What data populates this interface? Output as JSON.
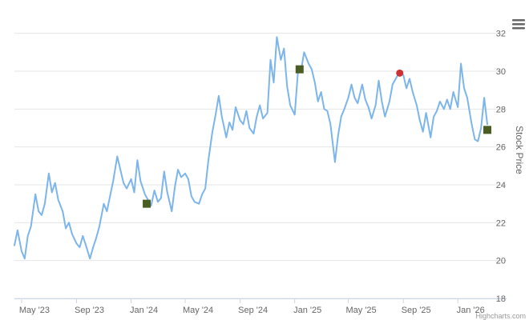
{
  "chart_data": {
    "type": "line",
    "title": "",
    "xlabel": "",
    "ylabel": "Stock Price",
    "ylim": [
      18,
      33
    ],
    "yticks": [
      18,
      20,
      22,
      24,
      26,
      28,
      30,
      32
    ],
    "xlim": [
      "2023-04-15",
      "2026-04-20"
    ],
    "xticks": [
      {
        "date": "2023-05-01",
        "label": "May '23"
      },
      {
        "date": "2023-09-01",
        "label": "Sep '23"
      },
      {
        "date": "2024-01-01",
        "label": "Jan '24"
      },
      {
        "date": "2024-05-01",
        "label": "May '24"
      },
      {
        "date": "2024-09-01",
        "label": "Sep '24"
      },
      {
        "date": "2025-01-01",
        "label": "Jan '25"
      },
      {
        "date": "2025-05-01",
        "label": "May '25"
      },
      {
        "date": "2025-09-01",
        "label": "Sep '25"
      },
      {
        "date": "2026-01-01",
        "label": "Jan '26"
      }
    ],
    "grid": true,
    "series": [
      {
        "color": "#7cb5ec",
        "points": [
          [
            "2023-04-15",
            20.8
          ],
          [
            "2023-04-22",
            21.6
          ],
          [
            "2023-05-01",
            20.5
          ],
          [
            "2023-05-08",
            20.1
          ],
          [
            "2023-05-15",
            21.3
          ],
          [
            "2023-05-22",
            21.8
          ],
          [
            "2023-06-01",
            23.5
          ],
          [
            "2023-06-08",
            22.6
          ],
          [
            "2023-06-15",
            22.4
          ],
          [
            "2023-06-22",
            23.0
          ],
          [
            "2023-07-01",
            24.6
          ],
          [
            "2023-07-08",
            23.6
          ],
          [
            "2023-07-15",
            24.1
          ],
          [
            "2023-07-22",
            23.2
          ],
          [
            "2023-08-01",
            22.6
          ],
          [
            "2023-08-08",
            21.7
          ],
          [
            "2023-08-15",
            22.0
          ],
          [
            "2023-08-22",
            21.4
          ],
          [
            "2023-09-01",
            20.9
          ],
          [
            "2023-09-08",
            20.7
          ],
          [
            "2023-09-15",
            21.3
          ],
          [
            "2023-09-22",
            20.8
          ],
          [
            "2023-10-01",
            20.1
          ],
          [
            "2023-10-08",
            20.7
          ],
          [
            "2023-10-15",
            21.2
          ],
          [
            "2023-10-22",
            21.8
          ],
          [
            "2023-11-01",
            23.0
          ],
          [
            "2023-11-08",
            22.6
          ],
          [
            "2023-11-15",
            23.4
          ],
          [
            "2023-11-22",
            24.2
          ],
          [
            "2023-12-01",
            25.5
          ],
          [
            "2023-12-08",
            24.8
          ],
          [
            "2023-12-15",
            24.1
          ],
          [
            "2023-12-22",
            23.8
          ],
          [
            "2024-01-01",
            24.3
          ],
          [
            "2024-01-08",
            23.6
          ],
          [
            "2024-01-15",
            25.3
          ],
          [
            "2024-01-22",
            24.2
          ],
          [
            "2024-02-01",
            23.5
          ],
          [
            "2024-02-08",
            23.2
          ],
          [
            "2024-02-15",
            22.9
          ],
          [
            "2024-02-22",
            23.7
          ],
          [
            "2024-03-01",
            23.1
          ],
          [
            "2024-03-08",
            23.3
          ],
          [
            "2024-03-15",
            24.7
          ],
          [
            "2024-03-22",
            23.6
          ],
          [
            "2024-04-01",
            22.6
          ],
          [
            "2024-04-08",
            23.9
          ],
          [
            "2024-04-15",
            24.8
          ],
          [
            "2024-04-22",
            24.4
          ],
          [
            "2024-05-01",
            24.6
          ],
          [
            "2024-05-08",
            24.3
          ],
          [
            "2024-05-15",
            23.4
          ],
          [
            "2024-05-22",
            23.1
          ],
          [
            "2024-06-01",
            23.0
          ],
          [
            "2024-06-08",
            23.5
          ],
          [
            "2024-06-15",
            23.8
          ],
          [
            "2024-06-22",
            25.3
          ],
          [
            "2024-07-01",
            26.8
          ],
          [
            "2024-07-08",
            27.7
          ],
          [
            "2024-07-15",
            28.7
          ],
          [
            "2024-07-22",
            27.6
          ],
          [
            "2024-08-01",
            26.5
          ],
          [
            "2024-08-08",
            27.3
          ],
          [
            "2024-08-15",
            26.9
          ],
          [
            "2024-08-22",
            28.1
          ],
          [
            "2024-09-01",
            27.4
          ],
          [
            "2024-09-08",
            27.2
          ],
          [
            "2024-09-15",
            27.9
          ],
          [
            "2024-09-22",
            27.0
          ],
          [
            "2024-10-01",
            26.7
          ],
          [
            "2024-10-08",
            27.6
          ],
          [
            "2024-10-15",
            28.2
          ],
          [
            "2024-10-22",
            27.5
          ],
          [
            "2024-11-01",
            27.8
          ],
          [
            "2024-11-08",
            30.6
          ],
          [
            "2024-11-15",
            29.4
          ],
          [
            "2024-11-22",
            31.8
          ],
          [
            "2024-12-01",
            30.6
          ],
          [
            "2024-12-08",
            31.2
          ],
          [
            "2024-12-15",
            29.2
          ],
          [
            "2024-12-22",
            28.2
          ],
          [
            "2025-01-01",
            27.7
          ],
          [
            "2025-01-08",
            29.9
          ],
          [
            "2025-01-15",
            30.0
          ],
          [
            "2025-01-22",
            31.0
          ],
          [
            "2025-02-01",
            30.4
          ],
          [
            "2025-02-08",
            30.1
          ],
          [
            "2025-02-15",
            29.4
          ],
          [
            "2025-02-22",
            28.4
          ],
          [
            "2025-03-01",
            28.9
          ],
          [
            "2025-03-08",
            28.0
          ],
          [
            "2025-03-15",
            27.9
          ],
          [
            "2025-03-22",
            27.2
          ],
          [
            "2025-04-01",
            25.2
          ],
          [
            "2025-04-08",
            26.6
          ],
          [
            "2025-04-15",
            27.6
          ],
          [
            "2025-04-22",
            28.0
          ],
          [
            "2025-05-01",
            28.6
          ],
          [
            "2025-05-08",
            29.3
          ],
          [
            "2025-05-15",
            28.6
          ],
          [
            "2025-05-22",
            28.3
          ],
          [
            "2025-06-01",
            29.3
          ],
          [
            "2025-06-08",
            28.5
          ],
          [
            "2025-06-15",
            28.1
          ],
          [
            "2025-06-22",
            27.5
          ],
          [
            "2025-07-01",
            28.2
          ],
          [
            "2025-07-08",
            29.5
          ],
          [
            "2025-07-15",
            28.4
          ],
          [
            "2025-07-22",
            27.6
          ],
          [
            "2025-08-01",
            28.4
          ],
          [
            "2025-08-08",
            29.3
          ],
          [
            "2025-08-15",
            29.6
          ],
          [
            "2025-08-22",
            29.9
          ],
          [
            "2025-09-01",
            29.8
          ],
          [
            "2025-09-08",
            29.1
          ],
          [
            "2025-09-15",
            29.6
          ],
          [
            "2025-09-22",
            28.9
          ],
          [
            "2025-10-01",
            28.2
          ],
          [
            "2025-10-08",
            27.4
          ],
          [
            "2025-10-15",
            26.8
          ],
          [
            "2025-10-22",
            27.8
          ],
          [
            "2025-11-01",
            26.5
          ],
          [
            "2025-11-08",
            27.6
          ],
          [
            "2025-11-15",
            27.9
          ],
          [
            "2025-11-22",
            28.4
          ],
          [
            "2025-12-01",
            28.0
          ],
          [
            "2025-12-08",
            28.5
          ],
          [
            "2025-12-15",
            28.0
          ],
          [
            "2025-12-22",
            28.9
          ],
          [
            "2026-01-01",
            28.1
          ],
          [
            "2026-01-08",
            30.4
          ],
          [
            "2026-01-15",
            29.1
          ],
          [
            "2026-01-22",
            28.6
          ],
          [
            "2026-02-01",
            27.2
          ],
          [
            "2026-02-08",
            26.4
          ],
          [
            "2026-02-15",
            26.3
          ],
          [
            "2026-02-22",
            27.0
          ],
          [
            "2026-03-01",
            28.6
          ],
          [
            "2026-03-08",
            27.2
          ]
        ]
      }
    ],
    "markers": [
      {
        "date": "2024-02-05",
        "value": 23.0,
        "shape": "square",
        "color": "#4a5e23"
      },
      {
        "date": "2025-01-12",
        "value": 30.1,
        "shape": "square",
        "color": "#4a5e23"
      },
      {
        "date": "2025-08-24",
        "value": 29.9,
        "shape": "circle",
        "color": "#cc3333"
      },
      {
        "date": "2026-03-08",
        "value": 26.9,
        "shape": "square",
        "color": "#4a5e23"
      }
    ]
  },
  "ui": {
    "credit": "Highcharts.com",
    "menu_icon": "hamburger-menu-icon"
  }
}
